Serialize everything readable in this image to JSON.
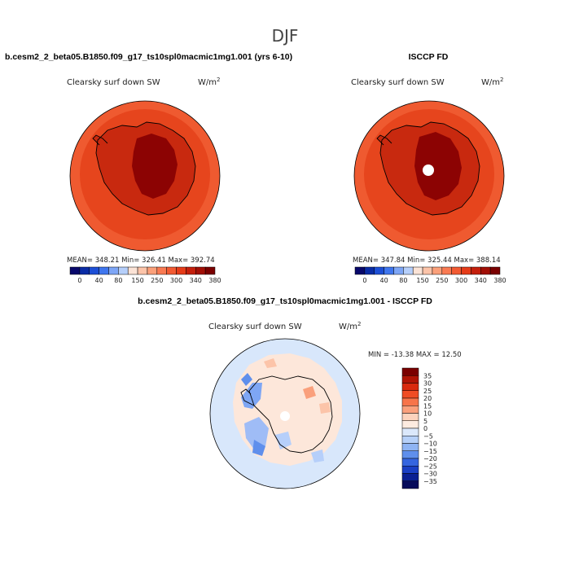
{
  "page_title": "DJF",
  "panels": [
    {
      "heading": "b.cesm2_2_beta05.B1850.f09_g17_ts10spl0macmic1mg1.001 (yrs 6-10)",
      "variable": "Clearsky surf down SW",
      "units": "W/m",
      "units_exp": "2",
      "stats": "MEAN= 348.21   Min= 326.41   Max= 392.74",
      "colorbar": {
        "colors": [
          "#08086b",
          "#0a2ca5",
          "#1d4fd6",
          "#3f76ee",
          "#7ea6f6",
          "#b6cffa",
          "#fbe3d6",
          "#fcc4a9",
          "#fba07a",
          "#f97a52",
          "#f25a32",
          "#e53b18",
          "#c41f0c",
          "#a10f06",
          "#7a0000"
        ],
        "labels": [
          "0",
          "40",
          "80",
          "150",
          "250",
          "300",
          "340",
          "380"
        ]
      }
    },
    {
      "heading": "ISCCP FD",
      "variable": "Clearsky surf down SW",
      "units": "W/m",
      "units_exp": "2",
      "stats": "MEAN= 347.84   Min= 325.44   Max= 388.14",
      "colorbar": {
        "colors": [
          "#08086b",
          "#0a2ca5",
          "#1d4fd6",
          "#3f76ee",
          "#7ea6f6",
          "#b6cffa",
          "#fbe3d6",
          "#fcc4a9",
          "#fba07a",
          "#f97a52",
          "#f25a32",
          "#e53b18",
          "#c41f0c",
          "#a10f06",
          "#7a0000"
        ],
        "labels": [
          "0",
          "40",
          "80",
          "150",
          "250",
          "300",
          "340",
          "380"
        ]
      }
    },
    {
      "heading": "b.cesm2_2_beta05.B1850.f09_g17_ts10spl0macmic1mg1.001 - ISCCP FD",
      "variable": "Clearsky surf down SW",
      "units": "W/m",
      "units_exp": "2",
      "stats": "MIN = -13.38 MAX =  12.50",
      "colorbar": {
        "colors": [
          "#7a0000",
          "#b01405",
          "#d92a0e",
          "#ef4c24",
          "#f7744a",
          "#faa07c",
          "#fcd3bd",
          "#fdebe0",
          "#dbe8fb",
          "#b6d0f8",
          "#8fb4f3",
          "#5f8fec",
          "#3565df",
          "#1a3fc4",
          "#0a1f93",
          "#060b5a"
        ],
        "labels": [
          "35",
          "30",
          "25",
          "20",
          "15",
          "10",
          "5",
          "0",
          "−5",
          "−10",
          "−15",
          "−20",
          "−25",
          "−30",
          "−35"
        ]
      }
    }
  ]
}
